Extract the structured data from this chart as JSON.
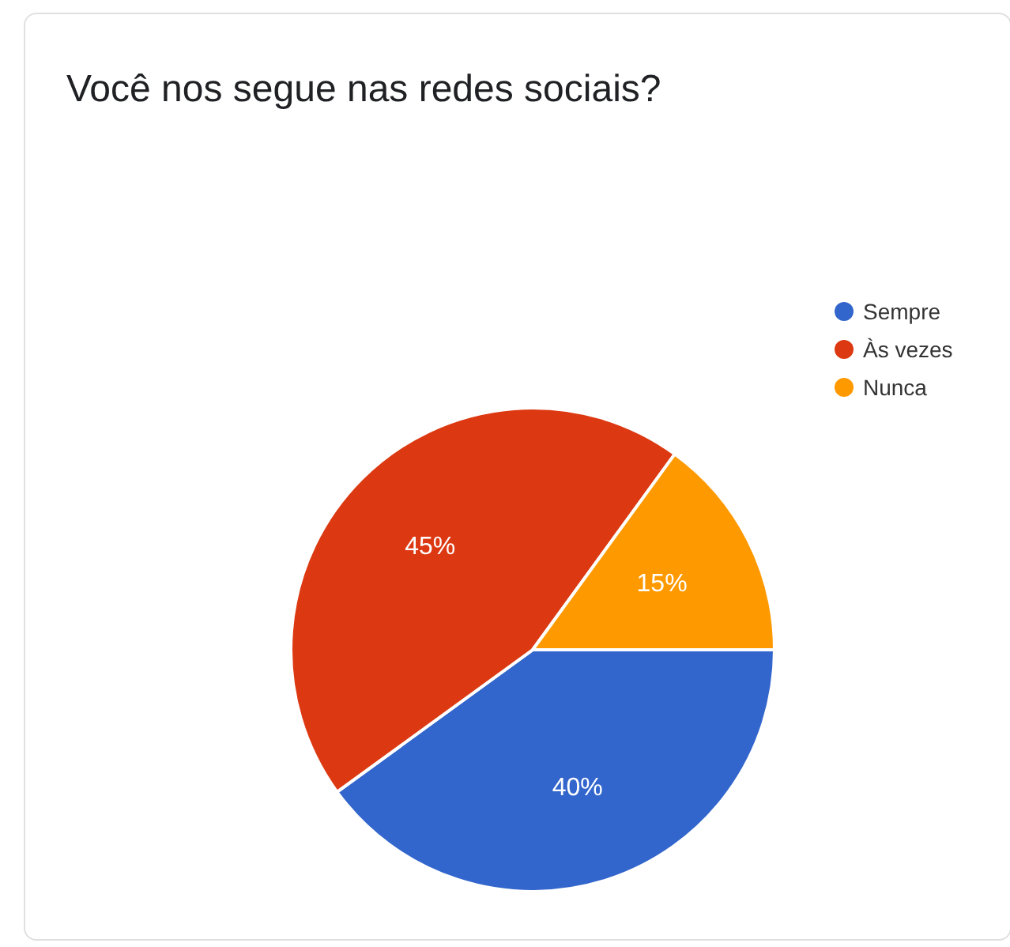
{
  "chart_data": {
    "type": "pie",
    "title": "Você nos segue nas redes sociais?",
    "categories": [
      "Sempre",
      "Às vezes",
      "Nunca"
    ],
    "values": [
      40,
      45,
      15
    ],
    "colors": [
      "#3366cc",
      "#dc3912",
      "#ff9900"
    ],
    "value_labels": [
      "40%",
      "45%",
      "15%"
    ],
    "legend": "right"
  }
}
